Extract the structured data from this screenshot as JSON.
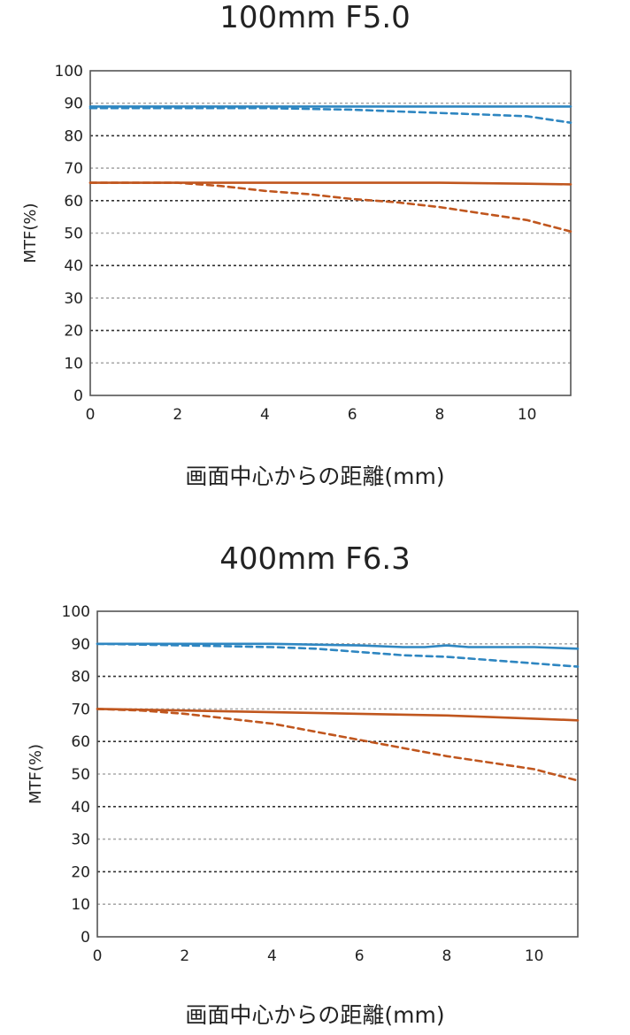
{
  "chart_data": [
    {
      "type": "line",
      "title": "100mm F5.0",
      "xlabel": "画面中心からの距離(mm)",
      "ylabel": "MTF(%)",
      "xlim": [
        0,
        11
      ],
      "ylim": [
        0,
        100
      ],
      "xticks": [
        0,
        2,
        4,
        6,
        8,
        10
      ],
      "yticks": [
        0,
        10,
        20,
        30,
        40,
        50,
        60,
        70,
        80,
        90,
        100
      ],
      "grid": "horizontal dotted",
      "series": [
        {
          "style": "solid",
          "color": "#2e86c1",
          "x": [
            0,
            2,
            4,
            6,
            8,
            10,
            11
          ],
          "y": [
            89,
            89,
            89,
            89,
            89,
            89,
            89
          ]
        },
        {
          "style": "dashed",
          "color": "#2e86c1",
          "x": [
            0,
            2,
            4,
            6,
            7,
            8,
            9,
            10,
            11
          ],
          "y": [
            88.5,
            88.5,
            88.5,
            88,
            87.5,
            87,
            86.5,
            86,
            84
          ]
        },
        {
          "style": "solid",
          "color": "#c0561e",
          "x": [
            0,
            2,
            4,
            6,
            8,
            10,
            11
          ],
          "y": [
            65.5,
            65.5,
            65.5,
            65.5,
            65.5,
            65.2,
            65
          ]
        },
        {
          "style": "dashed",
          "color": "#c0561e",
          "x": [
            0,
            2,
            3,
            4,
            5,
            6,
            7,
            8,
            9,
            10,
            11
          ],
          "y": [
            65.5,
            65.5,
            64.5,
            63,
            62,
            60.5,
            59.5,
            58,
            56,
            54,
            50.5
          ]
        }
      ]
    },
    {
      "type": "line",
      "title": "400mm F6.3",
      "xlabel": "画面中心からの距離(mm)",
      "ylabel": "MTF(%)",
      "xlim": [
        0,
        11
      ],
      "ylim": [
        0,
        100
      ],
      "xticks": [
        0,
        2,
        4,
        6,
        8,
        10
      ],
      "yticks": [
        0,
        10,
        20,
        30,
        40,
        50,
        60,
        70,
        80,
        90,
        100
      ],
      "grid": "horizontal dotted",
      "series": [
        {
          "style": "solid",
          "color": "#2e86c1",
          "x": [
            0,
            2,
            4,
            6,
            7,
            7.5,
            8,
            8.5,
            9,
            10,
            11
          ],
          "y": [
            90,
            90,
            90,
            89.5,
            89,
            89,
            89.5,
            89,
            89,
            89,
            88.5
          ]
        },
        {
          "style": "dashed",
          "color": "#2e86c1",
          "x": [
            0,
            2,
            4,
            5,
            6,
            7,
            8,
            9,
            10,
            11
          ],
          "y": [
            90,
            89.5,
            89,
            88.5,
            87.5,
            86.5,
            86,
            85,
            84,
            83
          ]
        },
        {
          "style": "solid",
          "color": "#c0561e",
          "x": [
            0,
            2,
            4,
            6,
            8,
            9,
            10,
            11
          ],
          "y": [
            70,
            69.5,
            69,
            68.5,
            68,
            67.5,
            67,
            66.5
          ]
        },
        {
          "style": "dashed",
          "color": "#c0561e",
          "x": [
            0,
            1,
            2,
            3,
            4,
            5,
            6,
            7,
            8,
            9,
            10,
            11
          ],
          "y": [
            70,
            69.5,
            68.5,
            67,
            65.5,
            63,
            60.5,
            58,
            55.5,
            53.5,
            51.5,
            48
          ]
        }
      ]
    }
  ]
}
